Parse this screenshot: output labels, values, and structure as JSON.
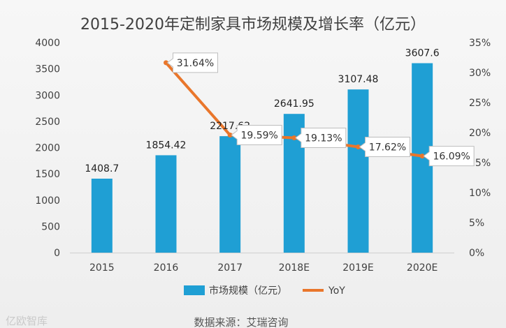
{
  "chart_data": {
    "type": "bar",
    "title": "2015-2020年定制家具市场规模及增长率（亿元）",
    "categories": [
      "2015",
      "2016",
      "2017",
      "2018E",
      "2019E",
      "2020E"
    ],
    "series": [
      {
        "name": "市场规模（亿元）",
        "type": "bar",
        "axis": "left",
        "values": [
          1408.7,
          1854.42,
          2217.62,
          2641.95,
          3107.48,
          3607.6
        ],
        "labels": [
          "1408.7",
          "1854.42",
          "2217.62",
          "2641.95",
          "3107.48",
          "3607.6"
        ],
        "color": "#1f9fd4"
      },
      {
        "name": "YoY",
        "type": "line",
        "axis": "right",
        "values": [
          null,
          31.64,
          19.59,
          19.13,
          17.62,
          16.09
        ],
        "labels": [
          null,
          "31.64%",
          "19.59%",
          "19.13%",
          "17.62%",
          "16.09%"
        ],
        "color": "#e9762b"
      }
    ],
    "y_left": {
      "ylim": [
        0,
        4000
      ],
      "ticks": [
        "0",
        "500",
        "1000",
        "1500",
        "2000",
        "2500",
        "3000",
        "3500",
        "4000"
      ]
    },
    "y_right": {
      "ylim": [
        0,
        35
      ],
      "ticks": [
        "0%",
        "5%",
        "10%",
        "15%",
        "20%",
        "25%",
        "30%",
        "35%"
      ]
    },
    "legend_position": "bottom",
    "grid": false
  },
  "source": "数据来源：艾瑞咨询",
  "watermark": "亿欧智库"
}
